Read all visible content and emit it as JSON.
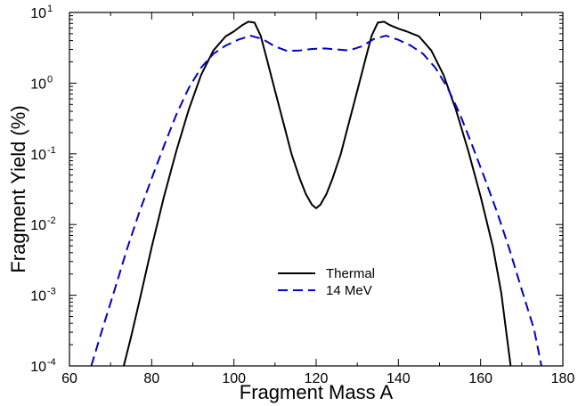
{
  "chart_data": {
    "type": "line",
    "xlabel": "Fragment Mass A",
    "ylabel": "Fragment Yield (%)",
    "xlim": [
      60,
      180
    ],
    "ylim": [
      0.0001,
      10
    ],
    "yscale": "log",
    "x_ticks": [
      60,
      80,
      100,
      120,
      140,
      160,
      180
    ],
    "y_ticks": [
      {
        "value": 0.0001,
        "base": "10",
        "exp": "-4"
      },
      {
        "value": 0.001,
        "base": "10",
        "exp": "-3"
      },
      {
        "value": 0.01,
        "base": "10",
        "exp": "-2"
      },
      {
        "value": 0.1,
        "base": "10",
        "exp": "-1"
      },
      {
        "value": 1,
        "base": "10",
        "exp": "0"
      },
      {
        "value": 10,
        "base": "10",
        "exp": "1"
      }
    ],
    "grid": false,
    "legend_position": "center",
    "series": [
      {
        "name": "Thermal",
        "color": "#000000",
        "dash": "solid",
        "x": [
          73.2,
          75,
          77,
          80,
          83,
          86,
          89,
          92,
          95,
          98,
          100,
          102,
          103.5,
          105,
          106.5,
          108,
          110,
          112,
          114,
          116,
          117.5,
          119,
          120,
          121,
          122.5,
          124,
          126,
          128,
          130,
          132,
          133.5,
          135,
          136.5,
          138,
          140,
          142,
          145,
          148,
          151,
          154,
          157,
          160,
          163,
          165,
          167.3
        ],
        "y": [
          0.0001,
          0.00026,
          0.00082,
          0.0048,
          0.025,
          0.11,
          0.42,
          1.3,
          2.9,
          4.6,
          5.4,
          6.6,
          7.4,
          7.2,
          4.7,
          2.2,
          0.78,
          0.28,
          0.1,
          0.045,
          0.027,
          0.019,
          0.017,
          0.019,
          0.027,
          0.045,
          0.1,
          0.28,
          0.78,
          2.2,
          4.7,
          7.2,
          7.4,
          6.6,
          5.9,
          5.4,
          4.6,
          2.9,
          1.3,
          0.42,
          0.11,
          0.025,
          0.0048,
          0.0011,
          0.0001
        ]
      },
      {
        "name": "14 MeV",
        "color": "#0000cc",
        "dash": "dashed",
        "x": [
          65.3,
          68,
          71,
          74,
          77,
          80,
          83,
          86,
          89,
          92,
          95,
          98,
          101,
          104,
          107,
          110,
          113,
          116,
          119,
          122,
          125,
          128,
          131,
          134,
          137,
          140,
          143,
          146,
          149,
          152,
          155,
          158,
          161,
          164,
          167,
          170,
          173,
          174.8
        ],
        "y": [
          0.0001,
          0.00033,
          0.0012,
          0.0045,
          0.015,
          0.045,
          0.13,
          0.36,
          0.85,
          1.65,
          2.6,
          3.4,
          4.1,
          4.7,
          4.2,
          3.3,
          2.85,
          2.9,
          3.05,
          3.1,
          3.0,
          2.9,
          3.3,
          4.2,
          4.7,
          4.1,
          3.4,
          2.6,
          1.65,
          0.85,
          0.36,
          0.13,
          0.045,
          0.015,
          0.0045,
          0.0012,
          0.00033,
          0.0001
        ]
      }
    ]
  }
}
